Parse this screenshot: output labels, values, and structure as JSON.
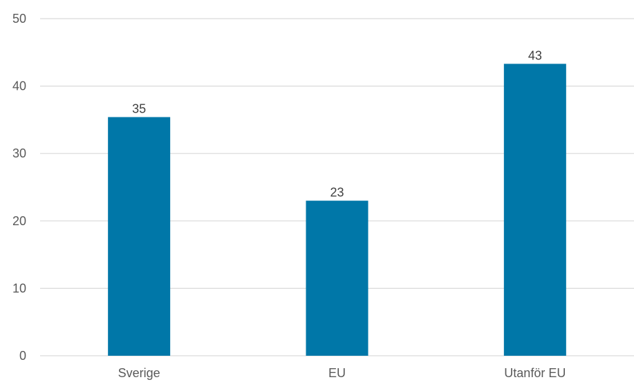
{
  "chart_data": {
    "type": "bar",
    "categories": [
      "Sverige",
      "EU",
      "Utanför EU"
    ],
    "values": [
      35.4,
      23,
      43.3
    ],
    "value_labels": [
      "35",
      "23",
      "43"
    ],
    "ylim": [
      0,
      50
    ],
    "yticks": [
      "0",
      "10",
      "20",
      "30",
      "40",
      "50"
    ],
    "grid": true,
    "legend": "none",
    "bar_color": "#0077a8",
    "grid_color": "#d9d9d9"
  }
}
